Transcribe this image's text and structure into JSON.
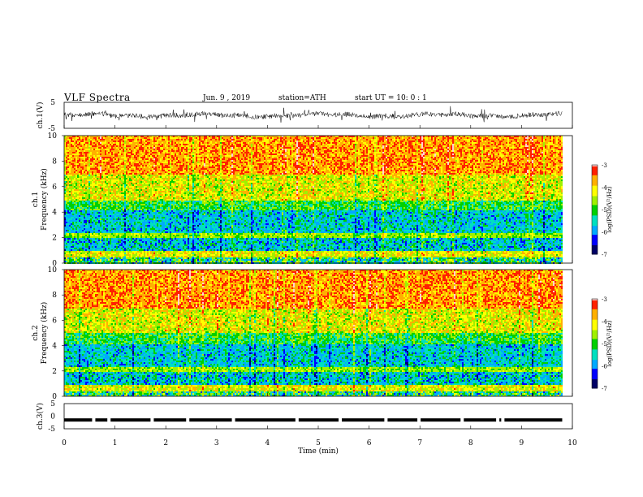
{
  "header": {
    "title": "VLF  Spectra",
    "date": "Jun. 9  , 2019",
    "station": "station=ATH",
    "start": "start  UT  =    10: 0   : 1"
  },
  "colors": {
    "spectrum": [
      "#000066",
      "#0000ff",
      "#00aaff",
      "#00e0c0",
      "#00d000",
      "#a0f000",
      "#ffff00",
      "#ffb000",
      "#ff2000",
      "#ffd0d0",
      "#ffffff"
    ]
  },
  "chart_data": [
    {
      "type": "line",
      "id": "ch1",
      "ylabel": "ch.1(V)",
      "ylim": [
        -5,
        5
      ],
      "yticks": [
        "5",
        "-5"
      ],
      "x_range_min": [
        0,
        9.8
      ],
      "description_values": "noisy waveform near 0 V, amplitude ~ ±1.5 V"
    },
    {
      "type": "heatmap",
      "id": "ch1_spectrogram",
      "ylabel": "ch.1\nFrequency  (kHz)",
      "ylim": [
        0,
        10
      ],
      "yticks": [
        "0",
        "2",
        "4",
        "6",
        "8",
        "10"
      ],
      "xlim": [
        0,
        9.8
      ],
      "colorbar": {
        "label": "log(PSD)(V²/Hz)",
        "ticks": [
          "-3",
          "-4",
          "-5",
          "-6",
          "-7"
        ],
        "range": [
          -7,
          -3
        ]
      }
    },
    {
      "type": "heatmap",
      "id": "ch2_spectrogram",
      "ylabel": "ch.2\nFrequency  (kHz)",
      "ylim": [
        0,
        10
      ],
      "yticks": [
        "0",
        "2",
        "4",
        "6",
        "8",
        "10"
      ],
      "xlim": [
        0,
        9.8
      ],
      "colorbar": {
        "label": "log(PSD)(V²/Hz)",
        "ticks": [
          "-3",
          "-4",
          "-5",
          "-6",
          "-7"
        ],
        "range": [
          -7,
          -3
        ]
      }
    },
    {
      "type": "line",
      "id": "ch3",
      "ylabel": "ch.3(V)",
      "ylim": [
        -5,
        5
      ],
      "yticks": [
        "5",
        "0",
        "-5"
      ],
      "level": -1.5,
      "gaps_min": [
        0.55,
        0.85,
        1.7,
        2.4,
        3.3,
        4.55,
        5.4,
        6.3,
        6.95,
        7.8,
        8.5,
        8.6
      ]
    }
  ],
  "xaxis": {
    "label": "Time  (min)",
    "xlim": [
      0,
      10
    ],
    "ticks": [
      "0",
      "1",
      "2",
      "3",
      "4",
      "5",
      "6",
      "7",
      "8",
      "9",
      "10"
    ]
  }
}
